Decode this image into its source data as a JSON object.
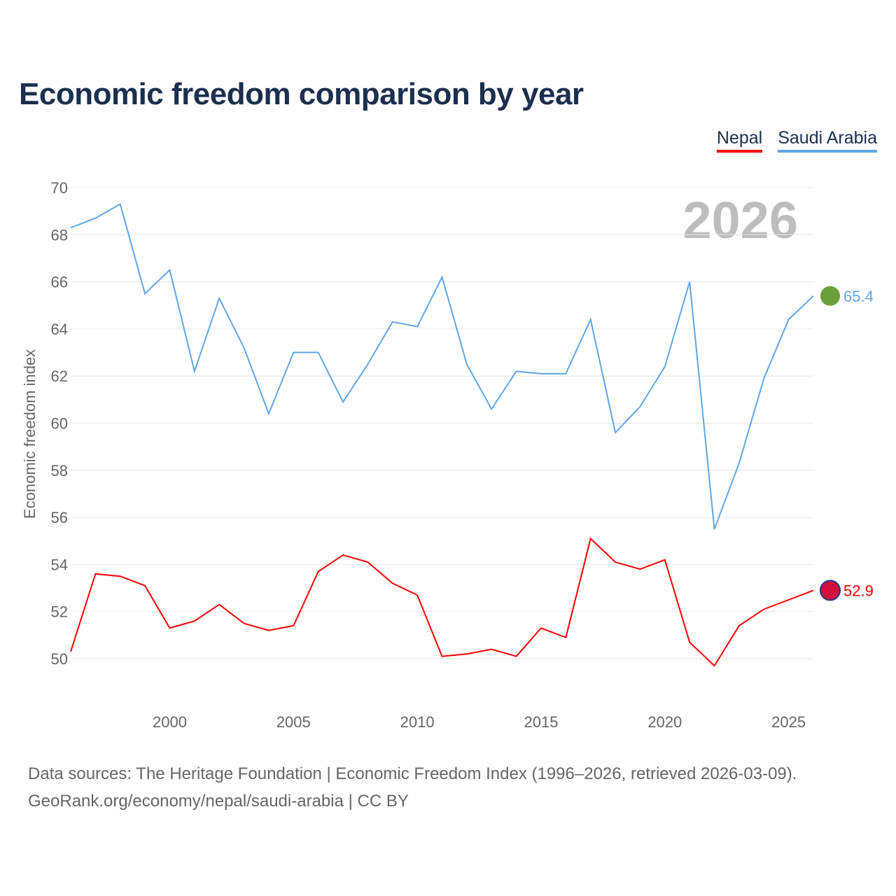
{
  "title": "Economic freedom comparison by year",
  "legend": [
    {
      "name": "Nepal",
      "color": "#ff0000"
    },
    {
      "name": "Saudi Arabia",
      "color": "#5fa6e8"
    }
  ],
  "watermark_year": "2026",
  "footer": {
    "line1": "Data sources: The Heritage Foundation | Economic Freedom Index (1996–2026, retrieved 2026-03-09).",
    "line2": "GeoRank.org/economy/nepal/saudi-arabia | CC BY"
  },
  "chart_data": {
    "type": "line",
    "title": "Economic freedom comparison by year",
    "xlabel": "",
    "ylabel": "Economic freedom index",
    "x": [
      1996,
      1997,
      1998,
      1999,
      2000,
      2001,
      2002,
      2003,
      2004,
      2005,
      2006,
      2007,
      2008,
      2009,
      2010,
      2011,
      2012,
      2013,
      2014,
      2015,
      2016,
      2017,
      2018,
      2019,
      2020,
      2021,
      2022,
      2023,
      2024,
      2025,
      2026
    ],
    "xlim": [
      1996,
      2026
    ],
    "ylim": [
      48.8,
      70
    ],
    "xticks": [
      "2000",
      "2005",
      "2010",
      "2015",
      "2020",
      "2025"
    ],
    "yticks": [
      "50",
      "52",
      "54",
      "56",
      "58",
      "60",
      "62",
      "64",
      "66",
      "68",
      "70"
    ],
    "grid": true,
    "legend_position": "top-right",
    "series": [
      {
        "name": "Nepal",
        "color": "#ff0000",
        "end_label": "52.9",
        "values": [
          50.3,
          53.6,
          53.5,
          53.1,
          51.3,
          51.6,
          52.3,
          51.5,
          51.2,
          51.4,
          53.7,
          54.4,
          54.1,
          53.2,
          52.7,
          50.1,
          50.2,
          50.4,
          50.1,
          51.3,
          50.9,
          55.1,
          54.1,
          53.8,
          54.2,
          50.7,
          49.7,
          51.4,
          52.1,
          52.5,
          52.9
        ]
      },
      {
        "name": "Saudi Arabia",
        "color": "#5fa6e8",
        "end_label": "65.4",
        "values": [
          68.3,
          68.7,
          69.3,
          65.5,
          66.5,
          62.2,
          65.3,
          63.2,
          60.4,
          63.0,
          63.0,
          60.9,
          62.5,
          64.3,
          64.1,
          66.2,
          62.5,
          60.6,
          62.2,
          62.1,
          62.1,
          64.4,
          59.6,
          60.7,
          62.4,
          66.0,
          55.5,
          58.3,
          61.9,
          64.4,
          65.4
        ]
      }
    ]
  }
}
